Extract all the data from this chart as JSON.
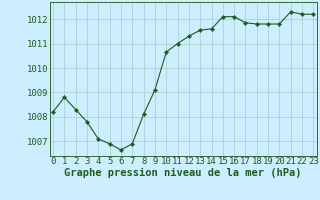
{
  "x": [
    0,
    1,
    2,
    3,
    4,
    5,
    6,
    7,
    8,
    9,
    10,
    11,
    12,
    13,
    14,
    15,
    16,
    17,
    18,
    19,
    20,
    21,
    22,
    23
  ],
  "y": [
    1008.2,
    1008.8,
    1008.3,
    1007.8,
    1007.1,
    1006.9,
    1006.65,
    1006.9,
    1008.1,
    1009.1,
    1010.65,
    1011.0,
    1011.3,
    1011.55,
    1011.6,
    1012.1,
    1012.1,
    1011.85,
    1011.8,
    1011.8,
    1011.8,
    1012.3,
    1012.2,
    1012.2
  ],
  "yticks": [
    1007,
    1008,
    1009,
    1010,
    1011,
    1012
  ],
  "xticks": [
    0,
    1,
    2,
    3,
    4,
    5,
    6,
    7,
    8,
    9,
    10,
    11,
    12,
    13,
    14,
    15,
    16,
    17,
    18,
    19,
    20,
    21,
    22,
    23
  ],
  "ylim": [
    1006.4,
    1012.7
  ],
  "xlim": [
    -0.3,
    23.3
  ],
  "line_color": "#1e5c1e",
  "marker_color": "#1e5c1e",
  "bg_color": "#cceeff",
  "grid_color": "#aacccc",
  "border_color": "#336633",
  "xlabel": "Graphe pression niveau de la mer (hPa)",
  "xlabel_color": "#1e5c1e",
  "tick_color": "#1e5c1e",
  "xlabel_fontsize": 7.5,
  "tick_fontsize": 6.5
}
